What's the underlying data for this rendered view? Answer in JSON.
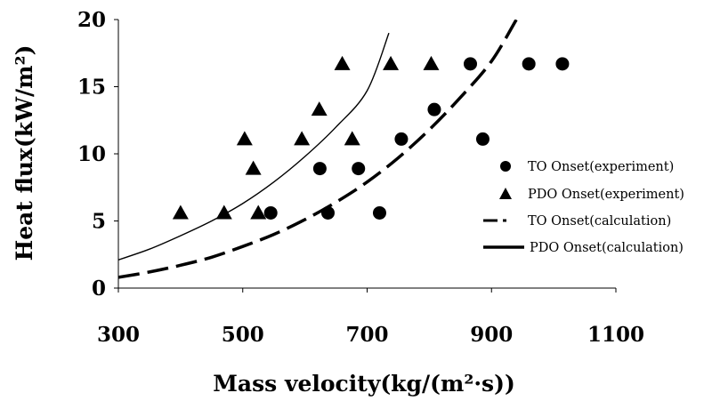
{
  "chart_data": {
    "type": "scatter",
    "xlabel": "Mass velocity(kg/(m²·s))",
    "ylabel": "Heat flux(kW/m²)",
    "xlim": [
      300,
      1100
    ],
    "ylim": [
      0,
      20
    ],
    "xticks": [
      300,
      500,
      700,
      900,
      1100
    ],
    "yticks": [
      0,
      5,
      10,
      15,
      20
    ],
    "grid": false,
    "legend_position": "right",
    "series": [
      {
        "name": "TO Onset(experiment)",
        "marker": "circle",
        "color": "#000000",
        "points": [
          [
            545,
            5.6
          ],
          [
            637,
            5.6
          ],
          [
            720,
            5.6
          ],
          [
            624,
            8.9
          ],
          [
            686,
            8.9
          ],
          [
            755,
            11.1
          ],
          [
            886,
            11.1
          ],
          [
            808,
            13.3
          ],
          [
            866,
            16.7
          ],
          [
            960,
            16.7
          ],
          [
            1014,
            16.7
          ]
        ]
      },
      {
        "name": "PDO Onset(experiment)",
        "marker": "triangle",
        "color": "#000000",
        "points": [
          [
            400,
            5.6
          ],
          [
            470,
            5.6
          ],
          [
            525,
            5.6
          ],
          [
            517,
            8.9
          ],
          [
            503,
            11.1
          ],
          [
            595,
            11.1
          ],
          [
            676,
            11.1
          ],
          [
            623,
            13.3
          ],
          [
            660,
            16.7
          ],
          [
            738,
            16.7
          ],
          [
            803,
            16.7
          ]
        ]
      },
      {
        "name": "TO Onset(calculation)",
        "style": "dashed",
        "color": "#000000",
        "points": [
          [
            300,
            0.8
          ],
          [
            350,
            1.2
          ],
          [
            400,
            1.7
          ],
          [
            450,
            2.3
          ],
          [
            500,
            3.1
          ],
          [
            550,
            4.0
          ],
          [
            600,
            5.1
          ],
          [
            650,
            6.4
          ],
          [
            700,
            7.9
          ],
          [
            750,
            9.7
          ],
          [
            800,
            11.8
          ],
          [
            850,
            14.2
          ],
          [
            900,
            16.9
          ],
          [
            940,
            20.0
          ]
        ]
      },
      {
        "name": "PDO Onset(calculation)",
        "style": "solid",
        "color": "#000000",
        "points": [
          [
            300,
            2.1
          ],
          [
            350,
            2.9
          ],
          [
            400,
            3.9
          ],
          [
            450,
            5.0
          ],
          [
            500,
            6.3
          ],
          [
            550,
            7.9
          ],
          [
            600,
            9.8
          ],
          [
            650,
            12.0
          ],
          [
            700,
            14.7
          ],
          [
            735,
            19.0
          ]
        ]
      }
    ]
  }
}
